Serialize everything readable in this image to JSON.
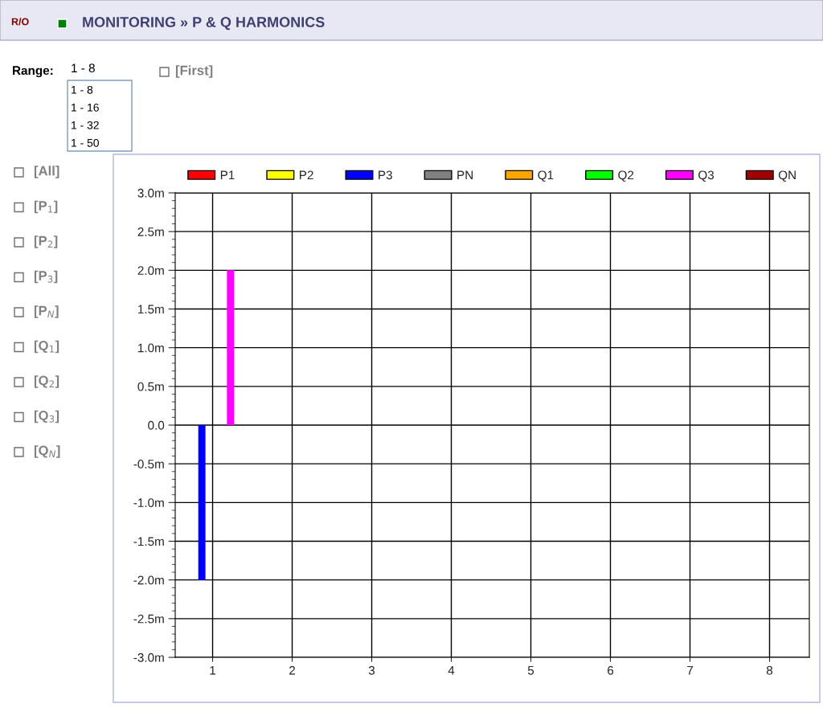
{
  "chart_data": {
    "type": "bar",
    "title": "MONITORING » P & Q HARMONICS",
    "categories": [
      "1",
      "2",
      "3",
      "4",
      "5",
      "6",
      "7",
      "8"
    ],
    "series": [
      {
        "name": "P1",
        "color": "#ff0000",
        "values": [
          0,
          0,
          0,
          0,
          0,
          0,
          0,
          0
        ]
      },
      {
        "name": "P2",
        "color": "#ffff00",
        "values": [
          0,
          0,
          0,
          0,
          0,
          0,
          0,
          0
        ]
      },
      {
        "name": "P3",
        "color": "#0000ff",
        "values": [
          -2.0,
          0,
          0,
          0,
          0,
          0,
          0,
          0
        ]
      },
      {
        "name": "PN",
        "color": "#808080",
        "values": [
          0,
          0,
          0,
          0,
          0,
          0,
          0,
          0
        ]
      },
      {
        "name": "Q1",
        "color": "#ffa500",
        "values": [
          0,
          0,
          0,
          0,
          0,
          0,
          0,
          0
        ]
      },
      {
        "name": "Q2",
        "color": "#00ff00",
        "values": [
          0,
          0,
          0,
          0,
          0,
          0,
          0,
          0
        ]
      },
      {
        "name": "Q3",
        "color": "#ff00ff",
        "values": [
          2.0,
          0,
          0,
          0,
          0,
          0,
          0,
          0
        ]
      },
      {
        "name": "QN",
        "color": "#a00000",
        "values": [
          0,
          0,
          0,
          0,
          0,
          0,
          0,
          0
        ]
      }
    ],
    "ylim": [
      -3.0,
      3.0
    ],
    "yticks": [
      {
        "value": -3.0,
        "label": "-3.0m"
      },
      {
        "value": -2.5,
        "label": "-2.5m"
      },
      {
        "value": -2.0,
        "label": "-2.0m"
      },
      {
        "value": -1.5,
        "label": "-1.5m"
      },
      {
        "value": -1.0,
        "label": "-1.0m"
      },
      {
        "value": -0.5,
        "label": "-0.5m"
      },
      {
        "value": 0.0,
        "label": "0.0"
      },
      {
        "value": 0.5,
        "label": "0.5m"
      },
      {
        "value": 1.0,
        "label": "1.0m"
      },
      {
        "value": 1.5,
        "label": "1.5m"
      },
      {
        "value": 2.0,
        "label": "2.0m"
      },
      {
        "value": 2.5,
        "label": "2.5m"
      },
      {
        "value": 3.0,
        "label": "3.0m"
      }
    ],
    "grid": true,
    "legend": "top",
    "annotations": [
      "R/O",
      "Range:",
      "1 - 8",
      "1 - 8",
      "1 - 16",
      "1 - 32",
      "1 - 50",
      "[First]",
      "[All]",
      "[P$_{1}$]",
      "[P$_{2}$]",
      "[P$_{3}$]",
      "[P$_{N}$]",
      "[Q$_{1}$]",
      "[Q$_{2}$]",
      "[Q$_{3}$]",
      "[Q$_{N}$]"
    ]
  }
}
